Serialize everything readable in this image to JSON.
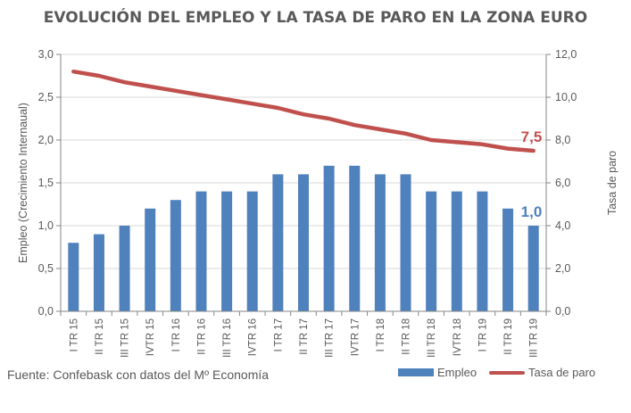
{
  "chart_data": {
    "type": "bar",
    "title": "EVOLUCIÓN DEL EMPLEO Y LA TASA DE PARO EN LA ZONA EURO",
    "ylabel": "Empleo (Crecimiento Internaual)",
    "y2label": "Tasa de paro",
    "ylim": [
      0,
      3.0
    ],
    "y2lim": [
      0,
      12.0
    ],
    "yticks": [
      "0,0",
      "0,5",
      "1,0",
      "1,5",
      "2,0",
      "2,5",
      "3,0"
    ],
    "y2ticks": [
      "0,0",
      "2,0",
      "4,0",
      "6,0",
      "8,0",
      "10,0",
      "12,0"
    ],
    "categories": [
      "I TR 15",
      "II TR 15",
      "III TR 15",
      "IVTR 15",
      "I TR 16",
      "II TR 16",
      "III TR 16",
      "IVTR 16",
      "I TR 17",
      "II TR 17",
      "III TR 17",
      "IVTR 17",
      "I TR 18",
      "II TR 18",
      "III TR 18",
      "IVTR 18",
      "I TR 19",
      "II TR 19",
      "III TR 19"
    ],
    "series": [
      {
        "name": "Empleo",
        "type": "bar",
        "axis": "left",
        "color": "#4f81bd",
        "values": [
          0.8,
          0.9,
          1.0,
          1.2,
          1.3,
          1.4,
          1.4,
          1.4,
          1.6,
          1.6,
          1.7,
          1.7,
          1.6,
          1.6,
          1.4,
          1.4,
          1.4,
          1.2,
          1.0
        ]
      },
      {
        "name": "Tasa de paro",
        "type": "line",
        "axis": "right",
        "color": "#c0504d",
        "values": [
          11.2,
          11.0,
          10.7,
          10.5,
          10.3,
          10.1,
          9.9,
          9.7,
          9.5,
          9.2,
          9.0,
          8.7,
          8.5,
          8.3,
          8.0,
          7.9,
          7.8,
          7.6,
          7.5
        ]
      }
    ],
    "annotations": [
      {
        "text": "1,0",
        "series": "Empleo",
        "color": "#4f81bd"
      },
      {
        "text": "7,5",
        "series": "Tasa de paro",
        "color": "#c0504d"
      }
    ],
    "grid": true,
    "legend": "bottom-right"
  },
  "source": "Fuente: Confebask con datos del Mº Economía",
  "legend_labels": {
    "bar": "Empleo",
    "line": "Tasa de paro"
  }
}
